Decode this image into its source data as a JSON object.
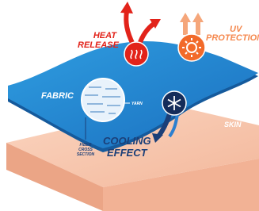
{
  "labels": {
    "heat_release": [
      "HEAT",
      "RELEASE"
    ],
    "uv_protection": [
      "UV",
      "PROTECTION"
    ],
    "fabric": "FABRIC",
    "yarn": "YARN",
    "fiber_cross_section": [
      "FIBER",
      "CROSS",
      "SECTION"
    ],
    "skin": "SKIN",
    "cooling_effect": [
      "COOLING",
      "EFFECT"
    ]
  }
}
